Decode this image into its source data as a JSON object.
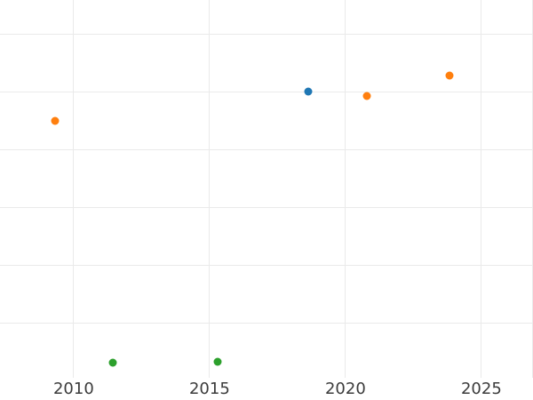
{
  "chart_data": {
    "type": "scatter",
    "title": "",
    "xlabel": "",
    "ylabel": "",
    "grid": true,
    "legend": "none",
    "background": "#ffffff",
    "grid_color": "#eaeaea",
    "tick_label_color": "#3b3b3b",
    "x_tick_labels": [
      "2010",
      "2015",
      "2020",
      "2025"
    ],
    "x_tick_values": [
      2010,
      2015,
      2020,
      2025
    ],
    "y_tick_labels": [],
    "xlim": [
      2007.29,
      2026.9
    ],
    "ylim": [
      0.05,
      6.59
    ],
    "y_gridline_values": [
      1,
      2,
      3,
      4,
      5,
      6
    ],
    "series": [
      {
        "name": "blue",
        "color": "#1f77b4",
        "points": [
          {
            "x": 2018.62,
            "y": 5.0
          }
        ]
      },
      {
        "name": "orange",
        "color": "#ff7f0e",
        "points": [
          {
            "x": 2009.3,
            "y": 4.5
          },
          {
            "x": 2020.79,
            "y": 4.93
          },
          {
            "x": 2023.83,
            "y": 5.29
          }
        ]
      },
      {
        "name": "green",
        "color": "#2ca02c",
        "points": [
          {
            "x": 2011.45,
            "y": 0.32
          },
          {
            "x": 2015.31,
            "y": 0.33
          }
        ]
      }
    ]
  }
}
